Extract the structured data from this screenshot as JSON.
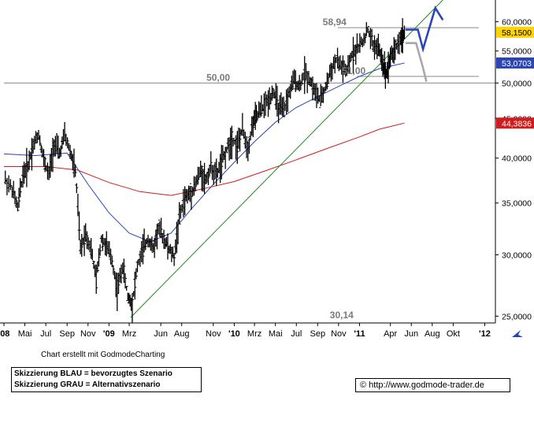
{
  "chart_data": {
    "type": "line",
    "title": "",
    "xlabel": "",
    "ylabel": "",
    "y_scale": "log",
    "ylim": [
      24500,
      64000
    ],
    "xlim": [
      "2008-03-01",
      "2012-02-01"
    ],
    "x_tick_labels": [
      "'08",
      "Mai",
      "Jul",
      "Sep",
      "Nov",
      "'09",
      "Mrz",
      "Jun",
      "Aug",
      "Nov",
      "'10",
      "Mrz",
      "Mai",
      "Jul",
      "Sep",
      "Nov",
      "'11",
      "Apr",
      "Jun",
      "Aug",
      "Okt",
      "'12"
    ],
    "x_tick_dates": [
      "2008-03-01",
      "2008-05-01",
      "2008-07-01",
      "2008-09-01",
      "2008-11-01",
      "2009-01-01",
      "2009-03-01",
      "2009-06-01",
      "2009-08-01",
      "2009-11-01",
      "2010-01-01",
      "2010-03-01",
      "2010-05-01",
      "2010-07-01",
      "2010-09-01",
      "2010-11-01",
      "2011-01-01",
      "2011-04-01",
      "2011-06-01",
      "2011-08-01",
      "2011-10-01",
      "2012-01-01"
    ],
    "y_tick_labels": [
      "25,0000",
      "30,0000",
      "35,0000",
      "40,0000",
      "45,0000",
      "50,0000",
      "55,0000",
      "60,0000"
    ],
    "y_ticks": [
      25000,
      30000,
      35000,
      40000,
      45000,
      50000,
      55000,
      60000
    ],
    "grid": false,
    "series": [
      {
        "type": "ohlc",
        "color": "#000000",
        "points": [
          [
            "2008-03-05",
            37500
          ],
          [
            "2008-03-25",
            36500
          ],
          [
            "2008-04-10",
            34500
          ],
          [
            "2008-04-25",
            38000
          ],
          [
            "2008-05-10",
            39200
          ],
          [
            "2008-05-25",
            41500
          ],
          [
            "2008-06-10",
            43000
          ],
          [
            "2008-06-25",
            39800
          ],
          [
            "2008-07-10",
            38000
          ],
          [
            "2008-07-25",
            41800
          ],
          [
            "2008-08-10",
            40500
          ],
          [
            "2008-08-25",
            42800
          ],
          [
            "2008-09-10",
            40800
          ],
          [
            "2008-09-25",
            38500
          ],
          [
            "2008-10-10",
            30500
          ],
          [
            "2008-10-25",
            32000
          ],
          [
            "2008-11-10",
            30500
          ],
          [
            "2008-11-25",
            27800
          ],
          [
            "2008-12-10",
            31500
          ],
          [
            "2008-12-25",
            30800
          ],
          [
            "2009-01-10",
            29500
          ],
          [
            "2009-01-25",
            27000
          ],
          [
            "2009-02-10",
            29000
          ],
          [
            "2009-02-25",
            26500
          ],
          [
            "2009-03-10",
            26000
          ],
          [
            "2009-03-25",
            29000
          ],
          [
            "2009-04-10",
            30500
          ],
          [
            "2009-04-25",
            31500
          ],
          [
            "2009-05-10",
            30500
          ],
          [
            "2009-05-25",
            32500
          ],
          [
            "2009-06-10",
            31500
          ],
          [
            "2009-06-25",
            30500
          ],
          [
            "2009-07-10",
            29800
          ],
          [
            "2009-07-25",
            33500
          ],
          [
            "2009-08-10",
            35500
          ],
          [
            "2009-08-25",
            36000
          ],
          [
            "2009-09-10",
            37000
          ],
          [
            "2009-09-25",
            38500
          ],
          [
            "2009-10-10",
            37500
          ],
          [
            "2009-10-25",
            39000
          ],
          [
            "2009-11-10",
            38000
          ],
          [
            "2009-11-25",
            39500
          ],
          [
            "2009-12-10",
            41000
          ],
          [
            "2009-12-25",
            42500
          ],
          [
            "2010-01-10",
            41500
          ],
          [
            "2010-01-25",
            43500
          ],
          [
            "2010-02-10",
            41200
          ],
          [
            "2010-02-25",
            44500
          ],
          [
            "2010-03-10",
            45500
          ],
          [
            "2010-03-25",
            46500
          ],
          [
            "2010-04-10",
            47500
          ],
          [
            "2010-04-25",
            48800
          ],
          [
            "2010-05-10",
            46500
          ],
          [
            "2010-05-25",
            46000
          ],
          [
            "2010-06-10",
            48500
          ],
          [
            "2010-06-25",
            50500
          ],
          [
            "2010-07-10",
            49500
          ],
          [
            "2010-07-25",
            51500
          ],
          [
            "2010-08-10",
            50500
          ],
          [
            "2010-08-25",
            48500
          ],
          [
            "2010-09-10",
            47500
          ],
          [
            "2010-09-25",
            49500
          ],
          [
            "2010-10-10",
            52000
          ],
          [
            "2010-10-25",
            53500
          ],
          [
            "2010-11-10",
            52500
          ],
          [
            "2010-11-25",
            51500
          ],
          [
            "2010-12-10",
            54500
          ],
          [
            "2010-12-25",
            55500
          ],
          [
            "2011-01-10",
            56500
          ],
          [
            "2011-01-25",
            58500
          ],
          [
            "2011-02-10",
            56000
          ],
          [
            "2011-02-25",
            55500
          ],
          [
            "2011-03-10",
            53000
          ],
          [
            "2011-03-20",
            51500
          ],
          [
            "2011-04-01",
            54000
          ],
          [
            "2011-04-15",
            55500
          ],
          [
            "2011-05-01",
            57000
          ],
          [
            "2011-05-12",
            58150
          ]
        ]
      },
      {
        "type": "line",
        "color": "#2b45b8",
        "points": [
          [
            "2008-03-01",
            40500
          ],
          [
            "2008-06-01",
            40300
          ],
          [
            "2008-09-01",
            40600
          ],
          [
            "2008-11-01",
            37000
          ],
          [
            "2009-01-01",
            34000
          ],
          [
            "2009-03-01",
            32000
          ],
          [
            "2009-05-01",
            31200
          ],
          [
            "2009-07-01",
            32000
          ],
          [
            "2009-09-01",
            34500
          ],
          [
            "2009-11-01",
            37000
          ],
          [
            "2010-01-01",
            39500
          ],
          [
            "2010-03-01",
            42000
          ],
          [
            "2010-05-01",
            44500
          ],
          [
            "2010-07-01",
            46500
          ],
          [
            "2010-09-01",
            48000
          ],
          [
            "2010-11-01",
            49500
          ],
          [
            "2011-01-01",
            51000
          ],
          [
            "2011-03-01",
            52200
          ],
          [
            "2011-05-12",
            53070
          ]
        ]
      },
      {
        "type": "line",
        "color": "#d01c1c",
        "points": [
          [
            "2008-03-01",
            39000
          ],
          [
            "2008-07-01",
            39000
          ],
          [
            "2008-10-01",
            38600
          ],
          [
            "2009-01-01",
            37200
          ],
          [
            "2009-04-01",
            36200
          ],
          [
            "2009-07-01",
            35800
          ],
          [
            "2009-10-01",
            36500
          ],
          [
            "2010-01-01",
            37300
          ],
          [
            "2010-04-01",
            38500
          ],
          [
            "2010-07-01",
            39800
          ],
          [
            "2010-10-01",
            41200
          ],
          [
            "2011-01-01",
            42600
          ],
          [
            "2011-03-01",
            43600
          ],
          [
            "2011-05-12",
            44384
          ]
        ]
      },
      {
        "type": "line",
        "color": "#1a8c1a",
        "points": [
          [
            "2009-03-05",
            24900
          ],
          [
            "2011-09-01",
            64000
          ]
        ]
      },
      {
        "type": "line",
        "color": "#2b45b8",
        "points": [
          [
            "2011-05-15",
            58600
          ],
          [
            "2011-06-20",
            58600
          ],
          [
            "2011-07-05",
            55300
          ],
          [
            "2011-08-10",
            62500
          ],
          [
            "2011-09-01",
            60300
          ]
        ]
      },
      {
        "type": "line",
        "color": "#a8a8a8",
        "points": [
          [
            "2011-05-15",
            56300
          ],
          [
            "2011-06-15",
            56300
          ],
          [
            "2011-07-05",
            52300
          ],
          [
            "2011-07-15",
            50200
          ]
        ]
      }
    ],
    "hlines": [
      {
        "y": 58940,
        "label": "58,94",
        "x_label_date": "2010-10-25"
      },
      {
        "y": 51000,
        "label": "51,00",
        "x_label_date": "2010-12-20"
      },
      {
        "y": 50000,
        "label": "50,00",
        "x_label_date": "2009-11-20"
      }
    ],
    "annotations": [
      {
        "label": "30,14",
        "x_date": "2010-11-10"
      }
    ],
    "right_markers": [
      {
        "y": 58150,
        "label": "58,1500",
        "color": "#ffd400"
      },
      {
        "y": 53070,
        "label": "53,0703",
        "color": "#2b45b8"
      },
      {
        "y": 44384,
        "label": "44,3836",
        "color": "#d01c1c"
      }
    ]
  },
  "footer": {
    "credit": "Chart erstellt mit GodmodeCharting",
    "legend_line1": "Skizzierung BLAU = bevorzugtes Szenario",
    "legend_line2": "Skizzierung GRAU = Alternativszenario",
    "url": "© http://www.godmode-trader.de"
  }
}
